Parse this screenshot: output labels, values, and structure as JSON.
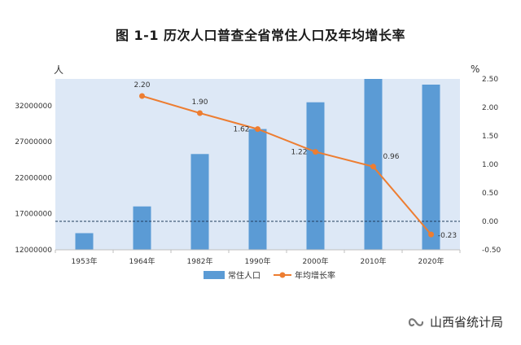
{
  "chart_data": {
    "type": "bar+line",
    "title": "图 1-1   历次人口普查全省常住人口及年均增长率",
    "categories": [
      "1953年",
      "1964年",
      "1982年",
      "1990年",
      "2000年",
      "2010年",
      "2020年"
    ],
    "series": [
      {
        "name": "常住人口",
        "type": "bar",
        "axis": "left",
        "color": "#5b9bd5",
        "values": [
          14310000,
          18020000,
          25290000,
          28760000,
          32470000,
          35710000,
          34920000
        ]
      },
      {
        "name": "年均增长率",
        "type": "line",
        "axis": "right",
        "color": "#ed7d31",
        "values": [
          null,
          2.2,
          1.9,
          1.62,
          1.22,
          0.96,
          -0.23
        ],
        "labels": [
          "",
          "2.20",
          "1.90",
          "1.62",
          "1.22",
          "0.96",
          "-0.23"
        ]
      }
    ],
    "y_left": {
      "unit": "人",
      "min": 12000000,
      "max": 35710000,
      "ticks": [
        12000000,
        17000000,
        22000000,
        27000000,
        32000000
      ],
      "tick_labels": [
        "12000000",
        "17000000",
        "22000000",
        "27000000",
        "32000000"
      ]
    },
    "y_right": {
      "unit": "%",
      "min": -0.5,
      "max": 2.5,
      "ticks": [
        -0.5,
        0.0,
        0.5,
        1.0,
        1.5,
        2.0,
        2.5
      ],
      "tick_labels": [
        "-0.50",
        "0.00",
        "0.50",
        "1.00",
        "1.50",
        "2.00",
        "2.50"
      ]
    },
    "zero_reference_line": "dashed",
    "plot_background": "#dde8f6",
    "legend_position": "bottom-center"
  },
  "watermark": {
    "text": "山西省统计局",
    "icon": "wechat-channel-icon"
  }
}
